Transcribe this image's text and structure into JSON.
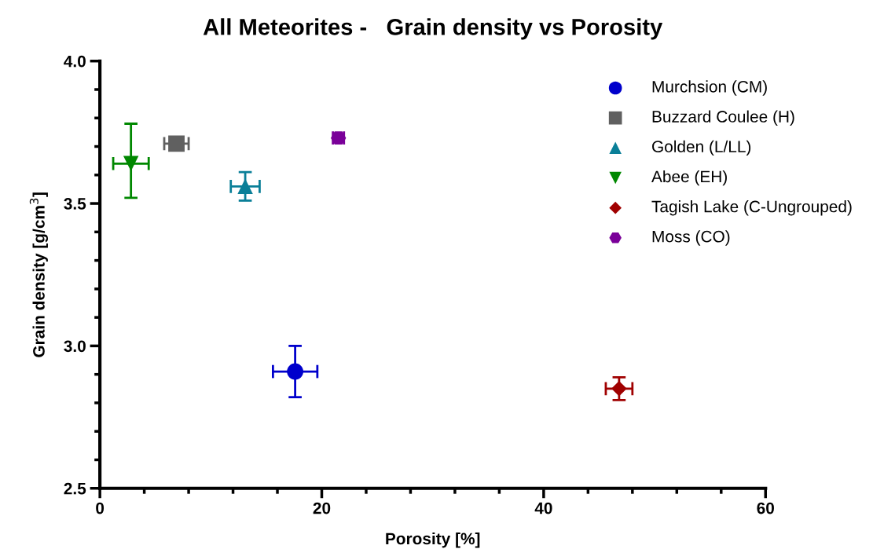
{
  "chart_data": {
    "type": "scatter",
    "title": "All Meteorites -   Grain density vs Porosity",
    "xlabel": "Porosity [%]",
    "ylabel": "Grain density [g/cm$^{3}$]",
    "xlim": [
      0,
      60
    ],
    "ylim": [
      2.5,
      4.0
    ],
    "xticks": [
      0,
      {
        "value": 4,
        "label": null
      },
      {
        "value": 8,
        "label": null
      },
      {
        "value": 12,
        "label": null
      },
      {
        "value": 16,
        "label": null
      },
      20,
      {
        "value": 24,
        "label": null
      },
      {
        "value": 28,
        "label": null
      },
      {
        "value": 32,
        "label": null
      },
      {
        "value": 36,
        "label": null
      },
      40,
      {
        "value": 44,
        "label": null
      },
      {
        "value": 48,
        "label": null
      },
      {
        "value": 52,
        "label": null
      },
      {
        "value": 56,
        "label": null
      },
      60
    ],
    "yticks": [
      {
        "value": 2.5,
        "label": "2.5"
      },
      {
        "value": 2.6,
        "label": null
      },
      {
        "value": 2.7,
        "label": null
      },
      {
        "value": 2.8,
        "label": null
      },
      {
        "value": 2.9,
        "label": null
      },
      {
        "value": 3.0,
        "label": "3.0"
      },
      {
        "value": 3.1,
        "label": null
      },
      {
        "value": 3.2,
        "label": null
      },
      {
        "value": 3.3,
        "label": null
      },
      {
        "value": 3.4,
        "label": null
      },
      {
        "value": 3.5,
        "label": "3.5"
      },
      {
        "value": 3.6,
        "label": null
      },
      {
        "value": 3.7,
        "label": null
      },
      {
        "value": 3.8,
        "label": null
      },
      {
        "value": 3.9,
        "label": null
      },
      {
        "value": 4.0,
        "label": "4.0"
      }
    ],
    "grid": false,
    "legend": "top right",
    "series": [
      {
        "name": "Murchsion (CM)",
        "color": "#0000cc",
        "marker": "circle",
        "x": [
          17.6
        ],
        "values": [
          2.91
        ],
        "errors": [
          0.09
        ],
        "xerrors": [
          2.0
        ]
      },
      {
        "name": "Buzzard Coulee (H)",
        "color": "#606060",
        "marker": "square",
        "x": [
          6.9
        ],
        "values": [
          3.71
        ],
        "errors": [
          null
        ],
        "xerrors": [
          1.1
        ]
      },
      {
        "name": "Golden (L/LL)",
        "color": "#0a7f98",
        "marker": "triangle",
        "x": [
          13.1
        ],
        "values": [
          3.56
        ],
        "errors": [
          0.05
        ],
        "xerrors": [
          1.3
        ]
      },
      {
        "name": "Abee (EH)",
        "color": "#008800",
        "marker": "triangle_down",
        "x": [
          2.8
        ],
        "values": [
          3.64
        ],
        "errors": [
          [
            3.52,
            3.78
          ]
        ],
        "xerrors": [
          1.6
        ]
      },
      {
        "name": "Tagish Lake (C-Ungrouped)",
        "color": "#a00000",
        "marker": "diamond",
        "x": [
          46.8
        ],
        "values": [
          2.85
        ],
        "errors": [
          0.04
        ],
        "xerrors": [
          1.2
        ]
      },
      {
        "name": "Moss (CO)",
        "color": "#7a0099",
        "x": [
          21.5
        ],
        "values": [
          3.73
        ],
        "errors": [
          null
        ],
        "xerrors": [
          0.5
        ]
      }
    ]
  }
}
